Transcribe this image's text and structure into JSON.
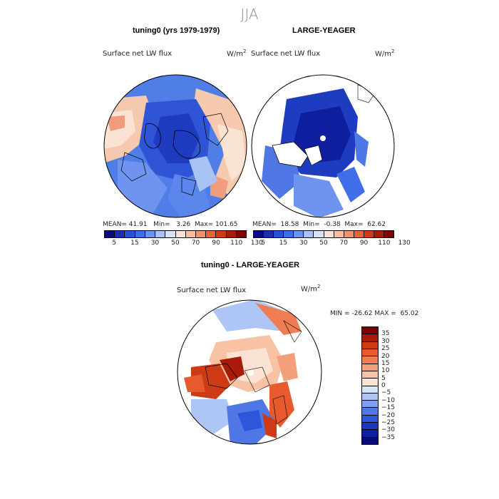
{
  "season": "JJA",
  "panels": {
    "left": {
      "title": "tuning0 (yrs 1979-1979)",
      "variable": "Surface net LW flux",
      "units_base": "W/m",
      "units_exp": "2",
      "mean_label": "MEAN=",
      "mean": "41.91",
      "min_label": "Min=",
      "min": "3.26",
      "max_label": "Max=",
      "max": "101.65"
    },
    "right": {
      "title": "LARGE-YEAGER",
      "variable": "Surface net LW flux",
      "units_base": "W/m",
      "units_exp": "2",
      "mean_label": "MEAN=",
      "mean": "18.58",
      "min_label": "Min=",
      "min": "-0.38",
      "max_label": "Max=",
      "max": "62.62"
    },
    "diff": {
      "title": "tuning0 - LARGE-YEAGER",
      "variable": "Surface net LW flux",
      "units_base": "W/m",
      "units_exp": "2",
      "min_label": "MIN =",
      "min": "-26.62",
      "max_label": "MAX =",
      "max": "65.02"
    }
  },
  "colorbar_abs": {
    "colors": [
      "#0a0a80",
      "#1a2db4",
      "#2c4fd8",
      "#3f6ee8",
      "#6f94ef",
      "#a9c3f5",
      "#d7e4f8",
      "#fbe3d3",
      "#f6bd9e",
      "#ef9170",
      "#e5643f",
      "#cf3a1a",
      "#a91a0a",
      "#800000"
    ],
    "tick_labels": [
      "5",
      "15",
      "30",
      "50",
      "70",
      "90",
      "110",
      "130"
    ]
  },
  "colorbar_diff": {
    "colors": [
      "#800000",
      "#a81a0a",
      "#cf3a16",
      "#e65a2e",
      "#ee7d52",
      "#f3a07a",
      "#f7c3a4",
      "#fbe3d3",
      "#d6e3f8",
      "#aec6f5",
      "#7ea0ef",
      "#4f78e6",
      "#2d56dc",
      "#1a37c6",
      "#0c1fa0",
      "#0a0a80"
    ],
    "tick_labels": [
      "35",
      "30",
      "25",
      "20",
      "15",
      "10",
      "5",
      "0",
      "-5",
      "-10",
      "-15",
      "-20",
      "-25",
      "-30",
      "-35"
    ]
  }
}
